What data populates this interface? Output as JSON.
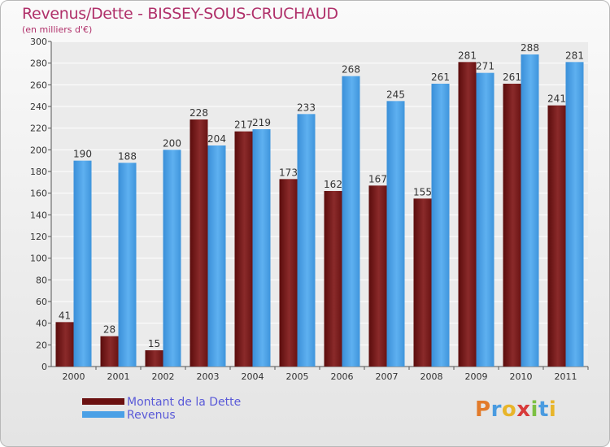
{
  "title": "Revenus/Dette - BISSEY-SOUS-CRUCHAUD",
  "subtitle": "(en milliers d'€)",
  "legend": {
    "debt_label": "Montant de la Dette",
    "revenue_label": "Revenus"
  },
  "logo": {
    "letters": [
      "P",
      "r",
      "o",
      "x",
      "i",
      "t",
      "i"
    ],
    "colors": [
      "#e27b2b",
      "#4a9be0",
      "#e8b52a",
      "#d83a3a",
      "#7cc043",
      "#4a9be0",
      "#e8b52a"
    ]
  },
  "colors": {
    "debt": "#7a1a1a",
    "revenue": "#4aa0e6",
    "title": "#b0306a",
    "legend_text": "#5a5ad8"
  },
  "chart_data": {
    "type": "bar",
    "categories": [
      "2000",
      "2001",
      "2002",
      "2003",
      "2004",
      "2005",
      "2006",
      "2007",
      "2008",
      "2009",
      "2010",
      "2011"
    ],
    "series": [
      {
        "name": "Montant de la Dette",
        "values": [
          41,
          28,
          15,
          228,
          217,
          173,
          162,
          167,
          155,
          281,
          261,
          241
        ]
      },
      {
        "name": "Revenus",
        "values": [
          190,
          188,
          200,
          204,
          219,
          233,
          268,
          245,
          261,
          271,
          288,
          281
        ]
      }
    ],
    "yticks": [
      0,
      20,
      40,
      60,
      80,
      100,
      120,
      140,
      160,
      180,
      200,
      220,
      240,
      260,
      280,
      300
    ],
    "ylim": [
      0,
      300
    ],
    "grid": true
  }
}
